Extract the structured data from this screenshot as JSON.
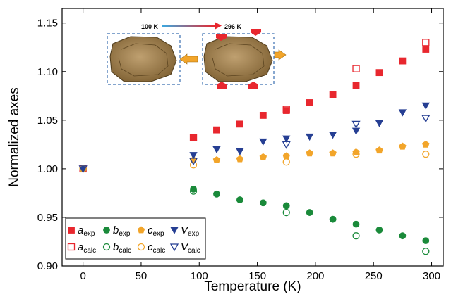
{
  "chart_data": {
    "type": "scatter",
    "xlabel": "Temperature (K)",
    "ylabel": "Normalized axes",
    "xlim": [
      -18,
      310
    ],
    "ylim": [
      0.9,
      1.165
    ],
    "xticks": [
      "0",
      "50",
      "100",
      "150",
      "200",
      "250",
      "300"
    ],
    "yticks": [
      "0.90",
      "0.95",
      "1.00",
      "1.05",
      "1.10",
      "1.15"
    ],
    "grid": false,
    "legend_position": "bottom-left",
    "inset": {
      "label_start": "100 K",
      "label_end": "296 K"
    },
    "series": [
      {
        "key": "a_exp",
        "symbol": "a",
        "sub": "exp",
        "marker": "square",
        "filled": true,
        "color": "#e8272e",
        "x": [
          0,
          95,
          115,
          135,
          155,
          175,
          195,
          215,
          235,
          255,
          275,
          295
        ],
        "y": [
          1.0,
          1.032,
          1.04,
          1.046,
          1.055,
          1.06,
          1.068,
          1.076,
          1.086,
          1.099,
          1.111,
          1.123
        ]
      },
      {
        "key": "b_exp",
        "symbol": "b",
        "sub": "exp",
        "marker": "circle",
        "filled": true,
        "color": "#1a8a3a",
        "x": [
          0,
          95,
          115,
          135,
          155,
          175,
          195,
          215,
          235,
          255,
          275,
          295
        ],
        "y": [
          1.0,
          0.979,
          0.974,
          0.968,
          0.965,
          0.962,
          0.955,
          0.948,
          0.943,
          0.937,
          0.931,
          0.926
        ]
      },
      {
        "key": "c_exp",
        "symbol": "c",
        "sub": "exp",
        "marker": "pentagon",
        "filled": true,
        "color": "#f2a52a",
        "x": [
          0,
          95,
          115,
          135,
          155,
          175,
          195,
          215,
          235,
          255,
          275,
          295
        ],
        "y": [
          1.0,
          1.009,
          1.009,
          1.01,
          1.012,
          1.013,
          1.016,
          1.016,
          1.017,
          1.019,
          1.023,
          1.025
        ]
      },
      {
        "key": "V_exp",
        "symbol": "V",
        "sub": "exp",
        "marker": "triangle-down",
        "filled": true,
        "color": "#263f93",
        "x": [
          0,
          95,
          115,
          135,
          155,
          175,
          195,
          215,
          235,
          255,
          275,
          295
        ],
        "y": [
          1.0,
          1.014,
          1.02,
          1.018,
          1.028,
          1.031,
          1.033,
          1.035,
          1.039,
          1.047,
          1.058,
          1.065
        ]
      },
      {
        "key": "a_calc",
        "symbol": "a",
        "sub": "calc",
        "marker": "square",
        "filled": false,
        "color": "#e8272e",
        "x": [
          0,
          95,
          175,
          235,
          295
        ],
        "y": [
          1.0,
          1.032,
          1.061,
          1.103,
          1.13
        ]
      },
      {
        "key": "b_calc",
        "symbol": "b",
        "sub": "calc",
        "marker": "circle",
        "filled": false,
        "color": "#1a8a3a",
        "x": [
          0,
          95,
          175,
          235,
          295
        ],
        "y": [
          1.0,
          0.977,
          0.955,
          0.931,
          0.915
        ]
      },
      {
        "key": "c_calc",
        "symbol": "c",
        "sub": "calc",
        "marker": "circle",
        "filled": false,
        "color": "#f2a52a",
        "x": [
          0,
          95,
          175,
          235,
          295
        ],
        "y": [
          1.0,
          1.004,
          1.007,
          1.015,
          1.015
        ]
      },
      {
        "key": "V_calc",
        "symbol": "V",
        "sub": "calc",
        "marker": "triangle-down",
        "filled": false,
        "color": "#263f93",
        "x": [
          0,
          95,
          175,
          235,
          295
        ],
        "y": [
          1.0,
          1.008,
          1.025,
          1.046,
          1.052
        ]
      }
    ]
  }
}
